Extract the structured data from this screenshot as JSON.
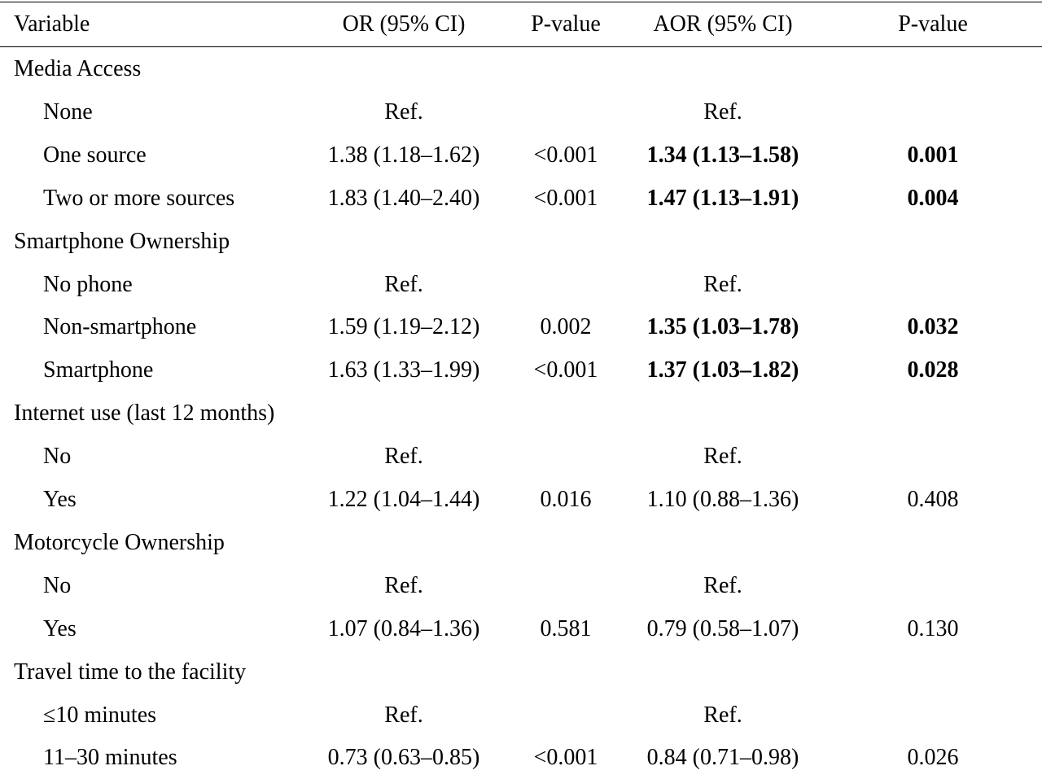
{
  "header": {
    "variable": "Variable",
    "or": "OR (95% CI)",
    "p1": "P-value",
    "aor": "AOR (95% CI)",
    "p2": "P-value"
  },
  "rows": [
    {
      "variable": "Media Access",
      "group": true,
      "or": "",
      "p1": "",
      "aor": "",
      "p2": "",
      "bold": false
    },
    {
      "variable": "None",
      "group": false,
      "or": "Ref.",
      "p1": "",
      "aor": "Ref.",
      "p2": "",
      "bold": false
    },
    {
      "variable": "One source",
      "group": false,
      "or": "1.38 (1.18–1.62)",
      "p1": "<0.001",
      "aor": "1.34 (1.13–1.58)",
      "p2": "0.001",
      "bold": true
    },
    {
      "variable": "Two or more sources",
      "group": false,
      "or": "1.83 (1.40–2.40)",
      "p1": "<0.001",
      "aor": "1.47 (1.13–1.91)",
      "p2": "0.004",
      "bold": true
    },
    {
      "variable": "Smartphone Ownership",
      "group": true,
      "or": "",
      "p1": "",
      "aor": "",
      "p2": "",
      "bold": false
    },
    {
      "variable": "No phone",
      "group": false,
      "or": "Ref.",
      "p1": "",
      "aor": "Ref.",
      "p2": "",
      "bold": false
    },
    {
      "variable": "Non-smartphone",
      "group": false,
      "or": "1.59 (1.19–2.12)",
      "p1": "0.002",
      "aor": "1.35 (1.03–1.78)",
      "p2": "0.032",
      "bold": true
    },
    {
      "variable": "Smartphone",
      "group": false,
      "or": "1.63 (1.33–1.99)",
      "p1": "<0.001",
      "aor": "1.37 (1.03–1.82)",
      "p2": "0.028",
      "bold": true
    },
    {
      "variable": "Internet use (last 12 months)",
      "group": true,
      "or": "",
      "p1": "",
      "aor": "",
      "p2": "",
      "bold": false
    },
    {
      "variable": "No",
      "group": false,
      "or": "Ref.",
      "p1": "",
      "aor": "Ref.",
      "p2": "",
      "bold": false
    },
    {
      "variable": "Yes",
      "group": false,
      "or": "1.22 (1.04–1.44)",
      "p1": "0.016",
      "aor": "1.10 (0.88–1.36)",
      "p2": "0.408",
      "bold": false
    },
    {
      "variable": "Motorcycle Ownership",
      "group": true,
      "or": "",
      "p1": "",
      "aor": "",
      "p2": "",
      "bold": false
    },
    {
      "variable": "No",
      "group": false,
      "or": "Ref.",
      "p1": "",
      "aor": "Ref.",
      "p2": "",
      "bold": false
    },
    {
      "variable": "Yes",
      "group": false,
      "or": "1.07 (0.84–1.36)",
      "p1": "0.581",
      "aor": "0.79 (0.58–1.07)",
      "p2": "0.130",
      "bold": false
    },
    {
      "variable": "Travel time to the facility",
      "group": true,
      "or": "",
      "p1": "",
      "aor": "",
      "p2": "",
      "bold": false
    },
    {
      "variable": "≤10 minutes",
      "group": false,
      "or": "Ref.",
      "p1": "",
      "aor": "Ref.",
      "p2": "",
      "bold": false
    },
    {
      "variable": "11–30 minutes",
      "group": false,
      "or": "0.73 (0.63–0.85)",
      "p1": "<0.001",
      "aor": "0.84 (0.71–0.98)",
      "p2": "0.026",
      "bold": false
    }
  ]
}
